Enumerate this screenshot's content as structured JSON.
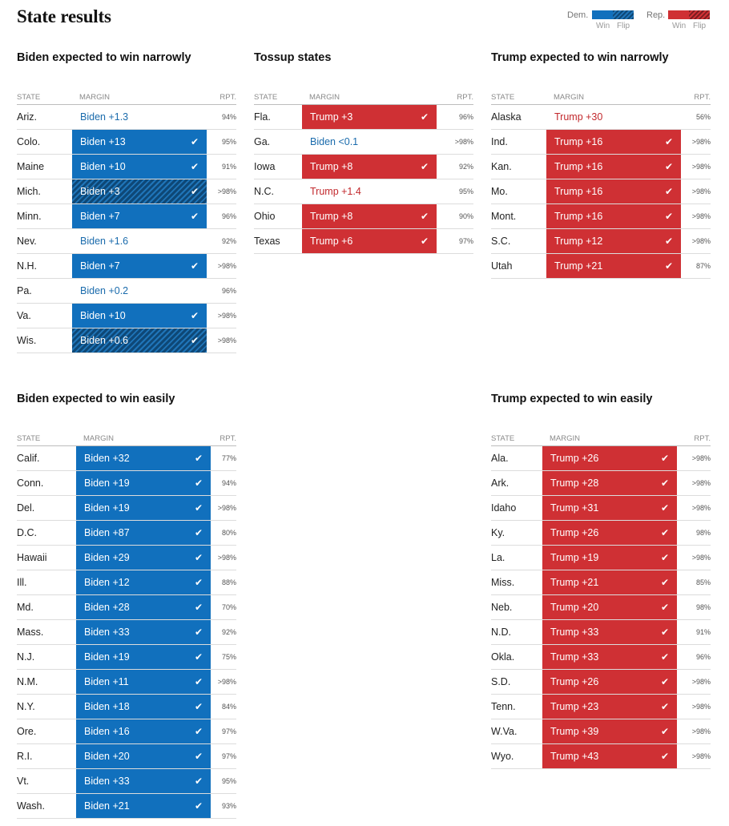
{
  "title": "State results",
  "legend": {
    "dem_label": "Dem.",
    "rep_label": "Rep.",
    "win_label": "Win",
    "flip_label": "Flip"
  },
  "colors": {
    "dem": "#1170bd",
    "dem_flip": "#0e4877",
    "rep": "#cf3034",
    "dem_text": "#1a6bac",
    "rep_text": "#c2282c"
  },
  "columns": {
    "state": "STATE",
    "margin": "MARGIN",
    "rpt": "RPT."
  },
  "check_icon": "checkmark-icon",
  "groups": [
    {
      "id": "biden-narrow",
      "title": "Biden expected to win narrowly",
      "rows": [
        {
          "state": "Ariz.",
          "margin": "Biden +1.3",
          "party": "dem",
          "status": "plain",
          "rpt": "94%"
        },
        {
          "state": "Colo.",
          "margin": "Biden +13",
          "party": "dem",
          "status": "win",
          "rpt": "95%"
        },
        {
          "state": "Maine",
          "margin": "Biden +10",
          "party": "dem",
          "status": "win",
          "rpt": "91%"
        },
        {
          "state": "Mich.",
          "margin": "Biden +3",
          "party": "dem",
          "status": "flip",
          "rpt": ">98%"
        },
        {
          "state": "Minn.",
          "margin": "Biden +7",
          "party": "dem",
          "status": "win",
          "rpt": "96%"
        },
        {
          "state": "Nev.",
          "margin": "Biden +1.6",
          "party": "dem",
          "status": "plain",
          "rpt": "92%"
        },
        {
          "state": "N.H.",
          "margin": "Biden +7",
          "party": "dem",
          "status": "win",
          "rpt": ">98%"
        },
        {
          "state": "Pa.",
          "margin": "Biden +0.2",
          "party": "dem",
          "status": "plain",
          "rpt": "96%"
        },
        {
          "state": "Va.",
          "margin": "Biden +10",
          "party": "dem",
          "status": "win",
          "rpt": ">98%"
        },
        {
          "state": "Wis.",
          "margin": "Biden +0.6",
          "party": "dem",
          "status": "flip",
          "rpt": ">98%"
        }
      ]
    },
    {
      "id": "tossup",
      "title": "Tossup states",
      "rows": [
        {
          "state": "Fla.",
          "margin": "Trump +3",
          "party": "rep",
          "status": "win",
          "rpt": "96%"
        },
        {
          "state": "Ga.",
          "margin": "Biden <0.1",
          "party": "dem",
          "status": "plain",
          "rpt": ">98%"
        },
        {
          "state": "Iowa",
          "margin": "Trump +8",
          "party": "rep",
          "status": "win",
          "rpt": "92%"
        },
        {
          "state": "N.C.",
          "margin": "Trump +1.4",
          "party": "rep",
          "status": "plain",
          "rpt": "95%"
        },
        {
          "state": "Ohio",
          "margin": "Trump +8",
          "party": "rep",
          "status": "win",
          "rpt": "90%"
        },
        {
          "state": "Texas",
          "margin": "Trump +6",
          "party": "rep",
          "status": "win",
          "rpt": "97%"
        }
      ]
    },
    {
      "id": "trump-narrow",
      "title": "Trump expected to win narrowly",
      "rows": [
        {
          "state": "Alaska",
          "margin": "Trump +30",
          "party": "rep",
          "status": "plain",
          "rpt": "56%"
        },
        {
          "state": "Ind.",
          "margin": "Trump +16",
          "party": "rep",
          "status": "win",
          "rpt": ">98%"
        },
        {
          "state": "Kan.",
          "margin": "Trump +16",
          "party": "rep",
          "status": "win",
          "rpt": ">98%"
        },
        {
          "state": "Mo.",
          "margin": "Trump +16",
          "party": "rep",
          "status": "win",
          "rpt": ">98%"
        },
        {
          "state": "Mont.",
          "margin": "Trump +16",
          "party": "rep",
          "status": "win",
          "rpt": ">98%"
        },
        {
          "state": "S.C.",
          "margin": "Trump +12",
          "party": "rep",
          "status": "win",
          "rpt": ">98%"
        },
        {
          "state": "Utah",
          "margin": "Trump +21",
          "party": "rep",
          "status": "win",
          "rpt": "87%"
        }
      ]
    },
    {
      "id": "biden-easy",
      "title": "Biden expected to win easily",
      "rows": [
        {
          "state": "Calif.",
          "margin": "Biden +32",
          "party": "dem",
          "status": "win",
          "rpt": "77%"
        },
        {
          "state": "Conn.",
          "margin": "Biden +19",
          "party": "dem",
          "status": "win",
          "rpt": "94%"
        },
        {
          "state": "Del.",
          "margin": "Biden +19",
          "party": "dem",
          "status": "win",
          "rpt": ">98%"
        },
        {
          "state": "D.C.",
          "margin": "Biden +87",
          "party": "dem",
          "status": "win",
          "rpt": "80%"
        },
        {
          "state": "Hawaii",
          "margin": "Biden +29",
          "party": "dem",
          "status": "win",
          "rpt": ">98%"
        },
        {
          "state": "Ill.",
          "margin": "Biden +12",
          "party": "dem",
          "status": "win",
          "rpt": "88%"
        },
        {
          "state": "Md.",
          "margin": "Biden +28",
          "party": "dem",
          "status": "win",
          "rpt": "70%"
        },
        {
          "state": "Mass.",
          "margin": "Biden +33",
          "party": "dem",
          "status": "win",
          "rpt": "92%"
        },
        {
          "state": "N.J.",
          "margin": "Biden +19",
          "party": "dem",
          "status": "win",
          "rpt": "75%"
        },
        {
          "state": "N.M.",
          "margin": "Biden +11",
          "party": "dem",
          "status": "win",
          "rpt": ">98%"
        },
        {
          "state": "N.Y.",
          "margin": "Biden +18",
          "party": "dem",
          "status": "win",
          "rpt": "84%"
        },
        {
          "state": "Ore.",
          "margin": "Biden +16",
          "party": "dem",
          "status": "win",
          "rpt": "97%"
        },
        {
          "state": "R.I.",
          "margin": "Biden +20",
          "party": "dem",
          "status": "win",
          "rpt": "97%"
        },
        {
          "state": "Vt.",
          "margin": "Biden +33",
          "party": "dem",
          "status": "win",
          "rpt": "95%"
        },
        {
          "state": "Wash.",
          "margin": "Biden +21",
          "party": "dem",
          "status": "win",
          "rpt": "93%"
        }
      ]
    },
    {
      "id": "trump-easy",
      "title": "Trump expected to win easily",
      "rows": [
        {
          "state": "Ala.",
          "margin": "Trump +26",
          "party": "rep",
          "status": "win",
          "rpt": ">98%"
        },
        {
          "state": "Ark.",
          "margin": "Trump +28",
          "party": "rep",
          "status": "win",
          "rpt": ">98%"
        },
        {
          "state": "Idaho",
          "margin": "Trump +31",
          "party": "rep",
          "status": "win",
          "rpt": ">98%"
        },
        {
          "state": "Ky.",
          "margin": "Trump +26",
          "party": "rep",
          "status": "win",
          "rpt": "98%"
        },
        {
          "state": "La.",
          "margin": "Trump +19",
          "party": "rep",
          "status": "win",
          "rpt": ">98%"
        },
        {
          "state": "Miss.",
          "margin": "Trump +21",
          "party": "rep",
          "status": "win",
          "rpt": "85%"
        },
        {
          "state": "Neb.",
          "margin": "Trump +20",
          "party": "rep",
          "status": "win",
          "rpt": "98%"
        },
        {
          "state": "N.D.",
          "margin": "Trump +33",
          "party": "rep",
          "status": "win",
          "rpt": "91%"
        },
        {
          "state": "Okla.",
          "margin": "Trump +33",
          "party": "rep",
          "status": "win",
          "rpt": "96%"
        },
        {
          "state": "S.D.",
          "margin": "Trump +26",
          "party": "rep",
          "status": "win",
          "rpt": ">98%"
        },
        {
          "state": "Tenn.",
          "margin": "Trump +23",
          "party": "rep",
          "status": "win",
          "rpt": ">98%"
        },
        {
          "state": "W.Va.",
          "margin": "Trump +39",
          "party": "rep",
          "status": "win",
          "rpt": ">98%"
        },
        {
          "state": "Wyo.",
          "margin": "Trump +43",
          "party": "rep",
          "status": "win",
          "rpt": ">98%"
        }
      ]
    }
  ]
}
